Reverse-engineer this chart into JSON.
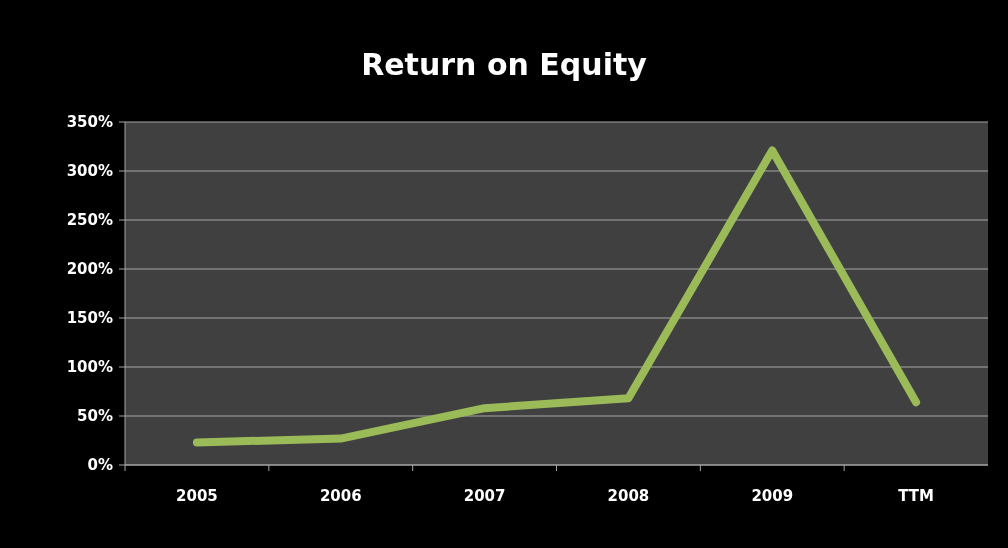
{
  "chart_data": {
    "type": "line",
    "title": "Return on Equity",
    "categories": [
      "2005",
      "2006",
      "2007",
      "2008",
      "2009",
      "TTM"
    ],
    "series": [
      {
        "color": "#9bbb59",
        "values": [
          23,
          27,
          58,
          68,
          321,
          64
        ]
      }
    ],
    "ylim": [
      0,
      350
    ],
    "yticks": [
      {
        "value": 0,
        "label": "0%"
      },
      {
        "value": 50,
        "label": "50%"
      },
      {
        "value": 100,
        "label": "100%"
      },
      {
        "value": 150,
        "label": "150%"
      },
      {
        "value": 200,
        "label": "200%"
      },
      {
        "value": 250,
        "label": "250%"
      },
      {
        "value": 300,
        "label": "300%"
      },
      {
        "value": 350,
        "label": "350%"
      }
    ],
    "grid": "y",
    "marker": "none",
    "line_style": "solid"
  }
}
